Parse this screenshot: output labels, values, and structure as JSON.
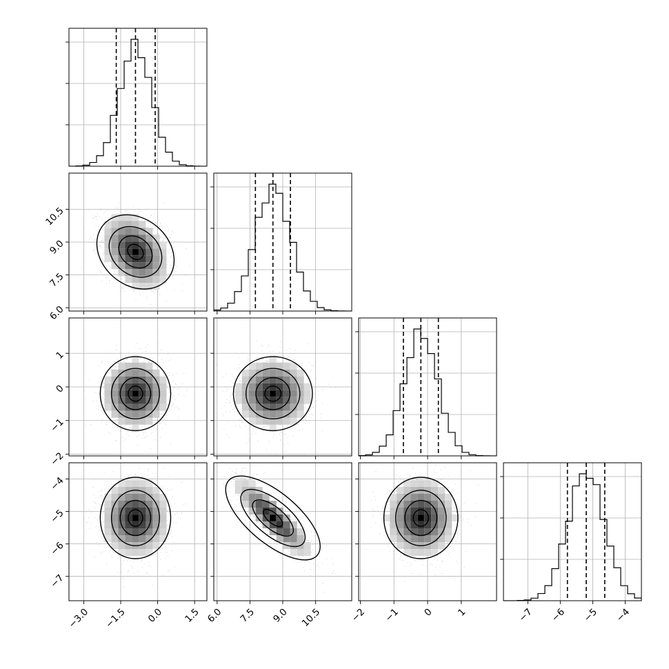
{
  "chart_data": {
    "type": "corner",
    "n_params": 4,
    "grid": true,
    "ranges": [
      [
        -3.6,
        2.0
      ],
      [
        5.85,
        12.15
      ],
      [
        -2.05,
        2.05
      ],
      [
        -7.75,
        -3.5
      ]
    ],
    "ticks": [
      {
        "values": [
          -3.0,
          -1.5,
          0.0,
          1.5
        ],
        "labels": [
          "−3.0",
          "−1.5",
          "0.0",
          "1.5"
        ]
      },
      {
        "values": [
          6.0,
          7.5,
          9.0,
          10.5
        ],
        "labels": [
          "6.0",
          "7.5",
          "9.0",
          "10.5"
        ]
      },
      {
        "values": [
          -2,
          -1,
          0,
          1
        ],
        "labels": [
          "−2",
          "−1",
          "0",
          "1"
        ]
      },
      {
        "values": [
          -7,
          -6,
          -5,
          -4
        ],
        "labels": [
          "−7",
          "−6",
          "−5",
          "−4"
        ]
      }
    ],
    "medians": [
      -0.9,
      8.55,
      -0.2,
      -5.2
    ],
    "sigmas": [
      0.65,
      0.82,
      0.5,
      0.57
    ],
    "quantiles": [
      [
        -1.68,
        -0.9,
        -0.1
      ],
      [
        7.75,
        8.55,
        9.35
      ],
      [
        -0.72,
        -0.2,
        0.32
      ],
      [
        -5.78,
        -5.2,
        -4.63
      ]
    ],
    "hist_bins": 20,
    "correlations": [
      [
        0,
        1,
        -0.35
      ],
      [
        3,
        1,
        -0.85
      ]
    ]
  }
}
